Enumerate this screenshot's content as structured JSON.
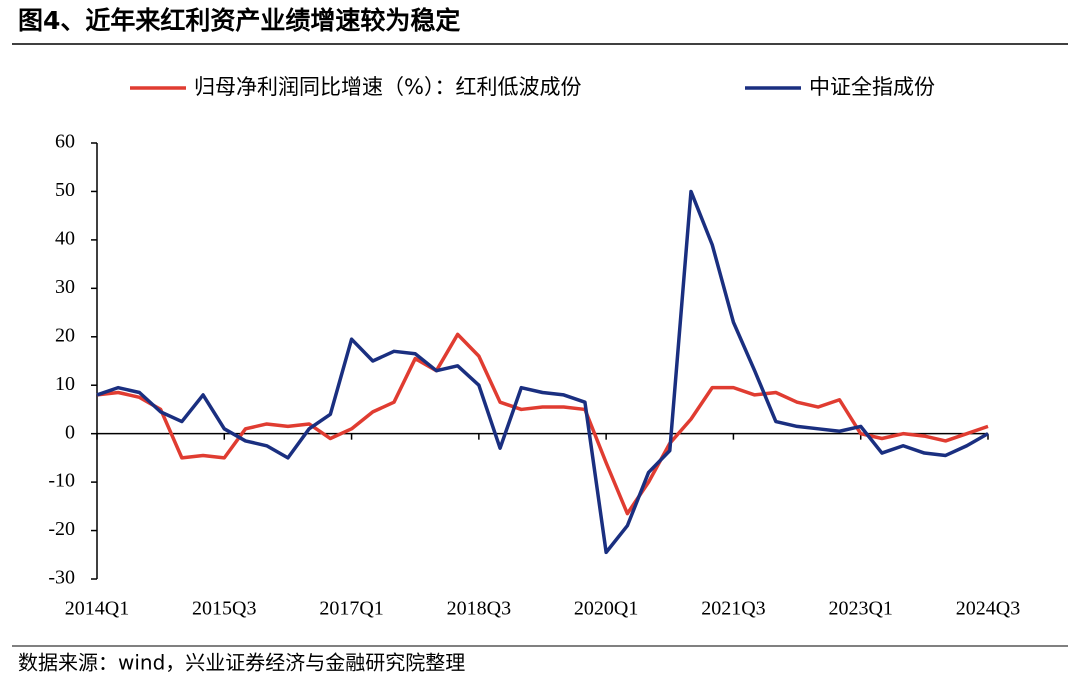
{
  "chart_data": {
    "type": "line",
    "title": "图4、近年来红利资产业绩增速较为稳定",
    "source": "数据来源：wind，兴业证券经济与金融研究院整理",
    "categories": [
      "2014Q1",
      null,
      null,
      null,
      null,
      null,
      "2015Q3",
      null,
      null,
      null,
      null,
      null,
      "2017Q1",
      null,
      null,
      null,
      null,
      null,
      "2018Q3",
      null,
      null,
      null,
      null,
      null,
      "2020Q1",
      null,
      null,
      null,
      null,
      null,
      "2021Q3",
      null,
      null,
      null,
      null,
      null,
      "2023Q1",
      null,
      null,
      null,
      null,
      null,
      "2024Q3"
    ],
    "series": [
      {
        "name": "归母净利润同比增速（%）：红利低波成份",
        "color": "#e03c31",
        "values": [
          8,
          8.5,
          7.5,
          5,
          -5,
          -4.5,
          -5,
          1,
          2,
          1.5,
          2,
          -1,
          1,
          4.5,
          6.5,
          15.5,
          13,
          20.5,
          16,
          6.5,
          5,
          5.5,
          5.5,
          5,
          -6,
          -16.5,
          -10,
          -2,
          3,
          9.5,
          9.5,
          8,
          8.5,
          6.5,
          5.5,
          7,
          0,
          -1,
          0,
          -0.5,
          -1.5,
          0,
          1.5
        ]
      },
      {
        "name": "中证全指成份",
        "color": "#1a2f80",
        "values": [
          8,
          9.5,
          8.5,
          4.5,
          2.5,
          8,
          1,
          -1.5,
          -2.5,
          -5,
          1,
          4,
          19.5,
          15,
          17,
          16.5,
          13,
          14,
          10,
          -3,
          9.5,
          8.5,
          8,
          6.5,
          -24.5,
          -19,
          -8,
          -3.5,
          50,
          39,
          23,
          13,
          2.5,
          1.5,
          1,
          0.5,
          1.5,
          -4,
          -2.5,
          -4,
          -4.5,
          -2.5,
          0
        ]
      }
    ],
    "ylim": [
      -30,
      60
    ],
    "yticks": [
      -30,
      -20,
      -10,
      0,
      10,
      20,
      30,
      40,
      50,
      60
    ]
  }
}
